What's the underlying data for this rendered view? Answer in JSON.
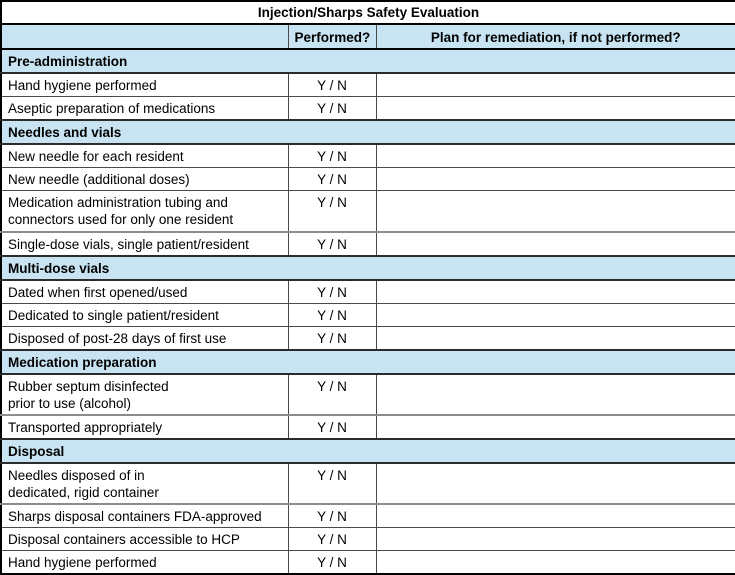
{
  "title": "Injection/Sharps Safety Evaluation",
  "columns": {
    "item": "",
    "performed": "Performed?",
    "remediation": "Plan for remediation, if not performed?"
  },
  "performed_value": "Y / N",
  "colors": {
    "section_blue": "#C8E4F2",
    "outer_border": "#000000",
    "section_border": "#2b2b2b",
    "tall_row_separator": "#8C8C8C"
  },
  "sections": [
    {
      "name": "Pre-administration",
      "items": [
        {
          "label": "Hand hygiene performed"
        },
        {
          "label": "Aseptic preparation of medications"
        }
      ]
    },
    {
      "name": "Needles and vials",
      "items": [
        {
          "label": "New needle for each resident"
        },
        {
          "label": "New needle (additional doses)"
        },
        {
          "label": "Medication administration tubing and\nconnectors used for only one resident",
          "tall": true
        },
        {
          "label": "Single-dose vials, single patient/resident"
        }
      ]
    },
    {
      "name": "Multi-dose vials",
      "items": [
        {
          "label": "Dated when first opened/used"
        },
        {
          "label": "Dedicated to single patient/resident"
        },
        {
          "label": "Disposed of post-28 days of first use"
        }
      ]
    },
    {
      "name": "Medication preparation",
      "items": [
        {
          "label": "Rubber septum disinfected\nprior to use (alcohol)",
          "tall": true
        },
        {
          "label": "Transported appropriately"
        }
      ]
    },
    {
      "name": "Disposal",
      "items": [
        {
          "label": "Needles disposed of in\ndedicated, rigid container",
          "tall": true
        },
        {
          "label": "Sharps disposal containers FDA-approved"
        },
        {
          "label": "Disposal containers accessible to HCP"
        },
        {
          "label": "Hand hygiene performed"
        }
      ]
    }
  ]
}
